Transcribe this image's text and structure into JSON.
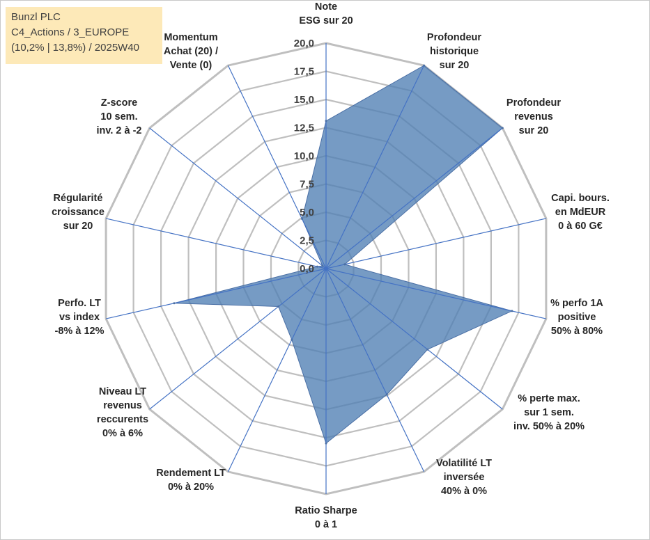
{
  "infobox": {
    "line1": "Bunzl PLC",
    "line2": "C4_Actions / 3_EUROPE",
    "line3": "(10,2% | 13,8%) / 2025W40"
  },
  "chart_data": {
    "type": "radar",
    "rmin": 0,
    "rmax": 20,
    "tick_labels": [
      "0,0",
      "2,5",
      "5,0",
      "7,5",
      "10,0",
      "12,5",
      "15,0",
      "17,5",
      "20,0"
    ],
    "axes": [
      [
        "Note",
        "ESG sur 20"
      ],
      [
        "Profondeur",
        "historique",
        "sur 20"
      ],
      [
        "Profondeur",
        "revenus",
        "sur 20"
      ],
      [
        "Capi. bours.",
        "en MdEUR",
        "0 à 60 G€"
      ],
      [
        "% perfo 1A",
        "positive",
        "50% à 80%"
      ],
      [
        "% perte max.",
        "sur 1 sem.",
        "inv. 50% à 20%"
      ],
      [
        "Volatilité LT",
        "inversée",
        "40% à 0%"
      ],
      [
        "Ratio Sharpe",
        "0 à 1"
      ],
      [
        "Rendement LT",
        "0% à 20%"
      ],
      [
        "Niveau LT",
        "revenus",
        "reccurents",
        "0% à 6%"
      ],
      [
        "Perfo. LT",
        "vs index",
        "-8% à 12%"
      ],
      [
        "Régularité",
        "croissance",
        "sur 20"
      ],
      [
        "Z-score",
        "10 sem.",
        "inv. 2 à -2"
      ],
      [
        "Momentum",
        "Achat (20) /",
        "Vente (0)"
      ]
    ],
    "series": [
      {
        "values": [
          13.1,
          20,
          20,
          1.7,
          16.9,
          11.5,
          12.4,
          15.5,
          7.0,
          5.4,
          13.8,
          0.8,
          0.4,
          4.9
        ]
      }
    ],
    "colors": {
      "fill": "#4f7fb4",
      "stroke": "#4a6fa5",
      "grid": "#bfbfbf",
      "spoke": "#4472c4"
    }
  }
}
